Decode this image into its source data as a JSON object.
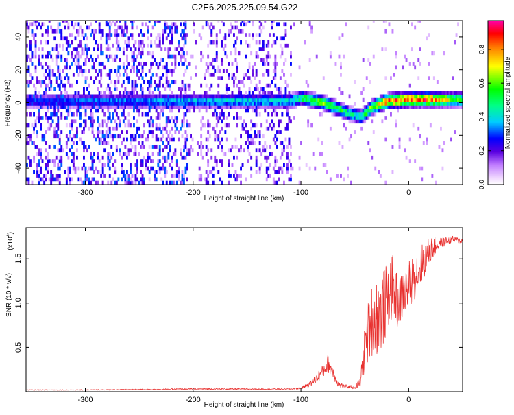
{
  "title": "C2E6.2025.225.09.54.G22",
  "chart_data": [
    {
      "type": "heatmap",
      "xlabel": "Height of straight line (km)",
      "ylabel": "Frequency (Hz)",
      "xlim": [
        -355,
        50
      ],
      "ylim": [
        -50,
        50
      ],
      "xticks": [
        -300,
        -200,
        -100,
        0
      ],
      "yticks": [
        -40,
        -20,
        0,
        20,
        40
      ],
      "colorbar": {
        "label": "Normalized spectral amplitude",
        "range": [
          0,
          0.97
        ],
        "ticks": [
          0.0,
          0.2,
          0.4,
          0.6,
          0.8
        ]
      },
      "ridge": {
        "x": [
          -355,
          -110,
          -100,
          -80,
          -65,
          -55,
          -45,
          -35,
          -20,
          0,
          20,
          50
        ],
        "y": [
          0,
          0,
          2,
          -1,
          -5,
          -8,
          -10,
          -4,
          0,
          1,
          1,
          1
        ],
        "peak_amplitude": [
          0.3,
          0.45,
          0.55,
          0.65,
          0.6,
          0.45,
          0.5,
          0.7,
          0.85,
          0.92,
          0.88,
          0.55
        ]
      },
      "noise_amplitude": [
        {
          "x_range": [
            -355,
            -205
          ],
          "level": 0.2
        },
        {
          "x_range": [
            -205,
            -190
          ],
          "level": 0.08
        },
        {
          "x_range": [
            -190,
            -110
          ],
          "level": 0.15
        },
        {
          "x_range": [
            -110,
            50
          ],
          "level": 0.02
        }
      ],
      "grid": false
    },
    {
      "type": "line",
      "xlabel": "Height of straight line (km)",
      "ylabel": "SNR (10 * v/v)",
      "yscale_note": "(x10",
      "yscale_exp": "4",
      "xlim": [
        -355,
        50
      ],
      "ylim": [
        0,
        1.85
      ],
      "xticks": [
        -300,
        -200,
        -100,
        0
      ],
      "yticks": [
        0.5,
        1.0,
        1.5
      ],
      "series": [
        {
          "color": "#e8312f",
          "x": [
            -355,
            -300,
            -250,
            -200,
            -150,
            -110,
            -100,
            -90,
            -80,
            -75,
            -70,
            -65,
            -60,
            -50,
            -45,
            -40,
            -35,
            -30,
            -25,
            -20,
            -15,
            -10,
            -5,
            0,
            10,
            20,
            30,
            40,
            50
          ],
          "y": [
            0.02,
            0.02,
            0.025,
            0.03,
            0.03,
            0.03,
            0.04,
            0.1,
            0.22,
            0.32,
            0.22,
            0.08,
            0.06,
            0.05,
            0.1,
            0.55,
            0.8,
            0.85,
            0.9,
            1.05,
            1.2,
            1.0,
            1.1,
            1.2,
            1.4,
            1.6,
            1.68,
            1.72,
            1.7
          ],
          "spread": [
            0.004,
            0.004,
            0.005,
            0.008,
            0.006,
            0.005,
            0.01,
            0.04,
            0.08,
            0.1,
            0.08,
            0.04,
            0.02,
            0.02,
            0.06,
            0.3,
            0.4,
            0.45,
            0.45,
            0.4,
            0.35,
            0.3,
            0.28,
            0.28,
            0.25,
            0.15,
            0.06,
            0.04,
            0.03
          ]
        }
      ]
    }
  ],
  "colors": {
    "axis": "#000000",
    "background": "#ffffff",
    "series_red": "#e8312f"
  }
}
